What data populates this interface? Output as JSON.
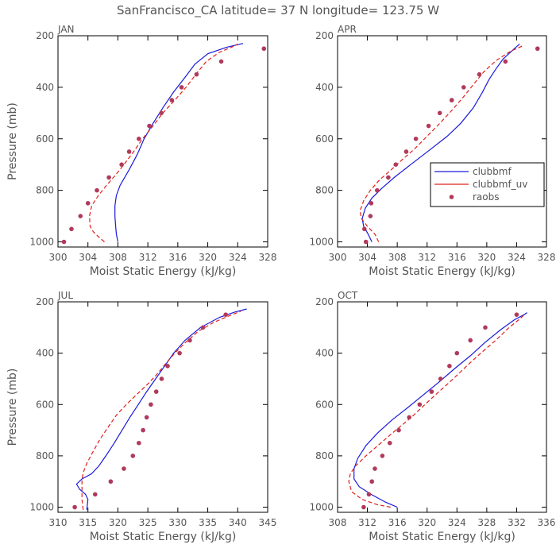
{
  "page": {
    "title": "SanFrancisco_CA  latitude= 37 N longitude= 123.75 W"
  },
  "colors": {
    "clubbmf": "#1a1adc",
    "clubbmf_uv": "#e0201c",
    "raobs": "#b03a5b",
    "axis": "#000000",
    "text": "#555555"
  },
  "legend": {
    "placement": "inside-right (APR panel)",
    "items": [
      {
        "label": "clubbmf",
        "style": "solid-line"
      },
      {
        "label": "clubbmf_uv",
        "style": "dashed-line"
      },
      {
        "label": "raobs",
        "style": "dots"
      }
    ]
  },
  "chart_data": [
    {
      "type": "line",
      "panel_label": "JAN",
      "xlabel": "Moist Static Energy (kJ/kg)",
      "ylabel": "Pressure (mb)",
      "xlim": [
        300,
        328
      ],
      "xticks": [
        300,
        304,
        308,
        312,
        316,
        320,
        324,
        328
      ],
      "ylim": [
        1020,
        200
      ],
      "yticks": [
        200,
        400,
        600,
        800,
        1000
      ],
      "series": [
        {
          "name": "clubbmf",
          "style": "solid",
          "points": [
            [
              308.0,
              1000
            ],
            [
              307.8,
              970
            ],
            [
              307.7,
              940
            ],
            [
              307.6,
              900
            ],
            [
              307.6,
              860
            ],
            [
              307.8,
              820
            ],
            [
              308.3,
              780
            ],
            [
              309.5,
              720
            ],
            [
              310.6,
              660
            ],
            [
              311.5,
              600
            ],
            [
              312.7,
              540
            ],
            [
              314.0,
              480
            ],
            [
              315.4,
              420
            ],
            [
              317.0,
              360
            ],
            [
              318.3,
              310
            ],
            [
              320.0,
              270
            ],
            [
              322.5,
              245
            ],
            [
              324.7,
              230
            ]
          ]
        },
        {
          "name": "clubbmf_uv",
          "style": "dashed",
          "points": [
            [
              306.2,
              1000
            ],
            [
              305.4,
              980
            ],
            [
              304.7,
              960
            ],
            [
              304.3,
              940
            ],
            [
              304.2,
              900
            ],
            [
              304.5,
              860
            ],
            [
              305.4,
              820
            ],
            [
              306.5,
              780
            ],
            [
              307.7,
              740
            ],
            [
              308.8,
              700
            ],
            [
              310.1,
              650
            ],
            [
              311.3,
              600
            ],
            [
              312.7,
              550
            ],
            [
              314.0,
              500
            ],
            [
              315.6,
              450
            ],
            [
              317.1,
              400
            ],
            [
              318.4,
              350
            ],
            [
              319.8,
              300
            ],
            [
              321.5,
              265
            ],
            [
              323.5,
              240
            ],
            [
              324.0,
              232
            ]
          ]
        },
        {
          "name": "raobs",
          "style": "dots",
          "points": [
            [
              300.8,
              1000
            ],
            [
              301.8,
              950
            ],
            [
              303.0,
              900
            ],
            [
              304.0,
              850
            ],
            [
              305.2,
              800
            ],
            [
              306.8,
              750
            ],
            [
              308.5,
              700
            ],
            [
              309.5,
              650
            ],
            [
              310.8,
              600
            ],
            [
              312.2,
              550
            ],
            [
              313.8,
              500
            ],
            [
              315.2,
              450
            ],
            [
              316.5,
              400
            ],
            [
              318.5,
              350
            ],
            [
              321.8,
              300
            ],
            [
              327.5,
              250
            ]
          ]
        }
      ]
    },
    {
      "type": "line",
      "panel_label": "APR",
      "xlabel": "Moist Static Energy (kJ/kg)",
      "ylabel": "",
      "xlim": [
        300,
        328
      ],
      "xticks": [
        300,
        304,
        308,
        312,
        316,
        320,
        324,
        328
      ],
      "ylim": [
        1020,
        200
      ],
      "yticks": [
        200,
        400,
        600,
        800,
        1000
      ],
      "series": [
        {
          "name": "clubbmf",
          "style": "solid",
          "points": [
            [
              304.6,
              1000
            ],
            [
              304.1,
              970
            ],
            [
              303.5,
              940
            ],
            [
              303.3,
              910
            ],
            [
              303.7,
              870
            ],
            [
              304.6,
              830
            ],
            [
              306.0,
              790
            ],
            [
              307.6,
              750
            ],
            [
              309.8,
              700
            ],
            [
              312.5,
              640
            ],
            [
              314.7,
              590
            ],
            [
              316.5,
              540
            ],
            [
              318.2,
              480
            ],
            [
              319.4,
              420
            ],
            [
              320.3,
              370
            ],
            [
              321.2,
              330
            ],
            [
              322.2,
              290
            ],
            [
              323.7,
              250
            ],
            [
              324.4,
              232
            ]
          ]
        },
        {
          "name": "clubbmf_uv",
          "style": "dashed",
          "points": [
            [
              305.5,
              1000
            ],
            [
              305.0,
              970
            ],
            [
              304.0,
              940
            ],
            [
              303.2,
              910
            ],
            [
              303.0,
              880
            ],
            [
              303.5,
              840
            ],
            [
              304.4,
              800
            ],
            [
              305.6,
              760
            ],
            [
              307.2,
              720
            ],
            [
              308.7,
              680
            ],
            [
              310.3,
              640
            ],
            [
              312.0,
              590
            ],
            [
              313.7,
              540
            ],
            [
              315.3,
              490
            ],
            [
              316.8,
              440
            ],
            [
              318.2,
              390
            ],
            [
              319.6,
              340
            ],
            [
              321.3,
              295
            ],
            [
              323.2,
              260
            ],
            [
              325.0,
              237
            ]
          ]
        },
        {
          "name": "raobs",
          "style": "dots",
          "points": [
            [
              303.8,
              1000
            ],
            [
              303.6,
              950
            ],
            [
              304.4,
              900
            ],
            [
              304.5,
              850
            ],
            [
              305.3,
              800
            ],
            [
              306.8,
              750
            ],
            [
              307.8,
              700
            ],
            [
              309.2,
              650
            ],
            [
              310.5,
              600
            ],
            [
              312.2,
              550
            ],
            [
              313.7,
              500
            ],
            [
              315.3,
              450
            ],
            [
              316.9,
              400
            ],
            [
              319.0,
              350
            ],
            [
              322.5,
              300
            ],
            [
              326.8,
              250
            ]
          ]
        }
      ]
    },
    {
      "type": "line",
      "panel_label": "JUL",
      "xlabel": "Moist Static Energy (kJ/kg)",
      "ylabel": "Pressure (mb)",
      "xlim": [
        310,
        345
      ],
      "xticks": [
        310,
        315,
        320,
        325,
        330,
        335,
        340,
        345
      ],
      "ylim": [
        1020,
        200
      ],
      "yticks": [
        200,
        400,
        600,
        800,
        1000
      ],
      "series": [
        {
          "name": "clubbmf",
          "style": "solid",
          "points": [
            [
              314.8,
              1010
            ],
            [
              314.9,
              990
            ],
            [
              315.0,
              970
            ],
            [
              314.6,
              950
            ],
            [
              313.6,
              930
            ],
            [
              313.1,
              910
            ],
            [
              314.0,
              890
            ],
            [
              315.6,
              870
            ],
            [
              316.8,
              840
            ],
            [
              318.0,
              800
            ],
            [
              319.4,
              750
            ],
            [
              320.7,
              700
            ],
            [
              322.0,
              650
            ],
            [
              323.4,
              600
            ],
            [
              324.8,
              550
            ],
            [
              326.3,
              500
            ],
            [
              327.8,
              450
            ],
            [
              329.3,
              400
            ],
            [
              331.2,
              350
            ],
            [
              333.8,
              300
            ],
            [
              337.0,
              260
            ],
            [
              339.5,
              240
            ],
            [
              341.5,
              228
            ]
          ]
        },
        {
          "name": "clubbmf_uv",
          "style": "dashed",
          "points": [
            [
              314.2,
              1010
            ],
            [
              314.0,
              970
            ],
            [
              314.0,
              930
            ],
            [
              314.0,
              890
            ],
            [
              314.3,
              860
            ],
            [
              314.8,
              830
            ],
            [
              315.7,
              790
            ],
            [
              316.9,
              740
            ],
            [
              318.3,
              690
            ],
            [
              319.8,
              640
            ],
            [
              321.4,
              600
            ],
            [
              323.2,
              560
            ],
            [
              325.0,
              520
            ],
            [
              326.6,
              480
            ],
            [
              328.0,
              440
            ],
            [
              329.5,
              400
            ],
            [
              331.2,
              360
            ],
            [
              333.4,
              315
            ],
            [
              336.0,
              280
            ],
            [
              338.5,
              255
            ],
            [
              340.5,
              237
            ]
          ]
        },
        {
          "name": "raobs",
          "style": "dots",
          "points": [
            [
              312.8,
              1000
            ],
            [
              316.2,
              950
            ],
            [
              318.8,
              900
            ],
            [
              321.0,
              850
            ],
            [
              322.5,
              800
            ],
            [
              323.5,
              750
            ],
            [
              324.2,
              700
            ],
            [
              324.8,
              650
            ],
            [
              325.5,
              600
            ],
            [
              326.4,
              550
            ],
            [
              327.3,
              500
            ],
            [
              328.3,
              450
            ],
            [
              330.3,
              400
            ],
            [
              332.0,
              350
            ],
            [
              334.2,
              300
            ],
            [
              338.0,
              250
            ]
          ]
        }
      ]
    },
    {
      "type": "line",
      "panel_label": "OCT",
      "xlabel": "Moist Static Energy (kJ/kg)",
      "ylabel": "",
      "xlim": [
        308,
        336
      ],
      "xticks": [
        308,
        312,
        316,
        320,
        324,
        328,
        332,
        336
      ],
      "ylim": [
        1020,
        200
      ],
      "yticks": [
        200,
        400,
        600,
        800,
        1000
      ],
      "series": [
        {
          "name": "clubbmf",
          "style": "solid",
          "points": [
            [
              316.0,
              1000
            ],
            [
              314.4,
              980
            ],
            [
              312.5,
              950
            ],
            [
              310.9,
              920
            ],
            [
              310.2,
              890
            ],
            [
              310.2,
              850
            ],
            [
              310.7,
              810
            ],
            [
              311.8,
              760
            ],
            [
              313.4,
              710
            ],
            [
              315.3,
              660
            ],
            [
              317.5,
              610
            ],
            [
              319.6,
              560
            ],
            [
              321.7,
              510
            ],
            [
              323.7,
              460
            ],
            [
              325.8,
              410
            ],
            [
              327.7,
              360
            ],
            [
              329.8,
              310
            ],
            [
              331.7,
              270
            ],
            [
              333.0,
              250
            ],
            [
              333.4,
              242
            ]
          ]
        },
        {
          "name": "clubbmf_uv",
          "style": "dashed",
          "points": [
            [
              315.1,
              1000
            ],
            [
              313.3,
              990
            ],
            [
              311.3,
              970
            ],
            [
              309.9,
              940
            ],
            [
              309.5,
              900
            ],
            [
              309.7,
              870
            ],
            [
              310.4,
              840
            ],
            [
              311.8,
              800
            ],
            [
              313.8,
              750
            ],
            [
              315.8,
              700
            ],
            [
              317.9,
              650
            ],
            [
              319.7,
              600
            ],
            [
              321.6,
              550
            ],
            [
              323.5,
              500
            ],
            [
              325.3,
              450
            ],
            [
              327.2,
              400
            ],
            [
              329.2,
              350
            ],
            [
              331.0,
              300
            ],
            [
              332.5,
              265
            ],
            [
              333.2,
              245
            ]
          ]
        },
        {
          "name": "raobs",
          "style": "dots",
          "points": [
            [
              311.5,
              1000
            ],
            [
              312.2,
              950
            ],
            [
              312.6,
              900
            ],
            [
              313.0,
              850
            ],
            [
              314.0,
              800
            ],
            [
              315.0,
              750
            ],
            [
              316.2,
              700
            ],
            [
              317.6,
              650
            ],
            [
              319.0,
              600
            ],
            [
              320.6,
              550
            ],
            [
              321.8,
              500
            ],
            [
              323.0,
              450
            ],
            [
              324.0,
              400
            ],
            [
              325.8,
              350
            ],
            [
              327.8,
              300
            ],
            [
              332.0,
              250
            ]
          ]
        }
      ]
    }
  ]
}
